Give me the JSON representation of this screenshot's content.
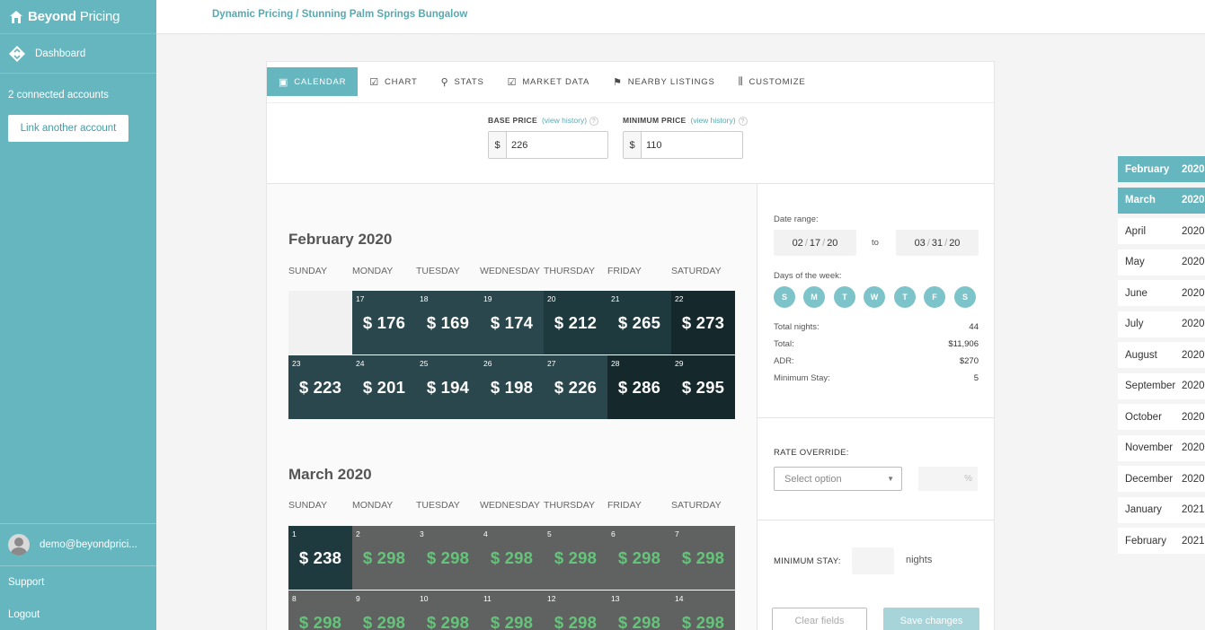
{
  "sidebar": {
    "brand_bold": "Beyond",
    "brand_light": "Pricing",
    "dashboard": "Dashboard",
    "accounts": "2 connected accounts",
    "link_account": "Link another account",
    "user_email": "demo@beyondprici...",
    "support": "Support",
    "logout": "Logout"
  },
  "header": {
    "breadcrumb": "Dynamic Pricing / Stunning Palm Springs Bungalow"
  },
  "tabs": [
    "CALENDAR",
    "CHART",
    "STATS",
    "MARKET DATA",
    "NEARBY LISTINGS",
    "CUSTOMIZE"
  ],
  "prices": {
    "base_label": "BASE PRICE",
    "base_value": "226",
    "min_label": "MINIMUM PRICE",
    "min_value": "110",
    "view_history": "(view history)",
    "currency": "$",
    "help": "?"
  },
  "weekdays": [
    "SUNDAY",
    "MONDAY",
    "TUESDAY",
    "WEDNESDAY",
    "THURSDAY",
    "FRIDAY",
    "SATURDAY"
  ],
  "months": [
    {
      "title": "February 2020",
      "weeks": [
        [
          null,
          {
            "day": "17",
            "price": "$ 176"
          },
          {
            "day": "18",
            "price": "$ 169"
          },
          {
            "day": "19",
            "price": "$ 174"
          },
          {
            "day": "20",
            "price": "$ 212"
          },
          {
            "day": "21",
            "price": "$ 265"
          },
          {
            "day": "22",
            "price": "$ 273"
          }
        ],
        [
          {
            "day": "23",
            "price": "$ 223"
          },
          {
            "day": "24",
            "price": "$ 201"
          },
          {
            "day": "25",
            "price": "$ 194"
          },
          {
            "day": "26",
            "price": "$ 198"
          },
          {
            "day": "27",
            "price": "$ 226"
          },
          {
            "day": "28",
            "price": "$ 286"
          },
          {
            "day": "29",
            "price": "$ 295"
          }
        ]
      ]
    },
    {
      "title": "March 2020",
      "weeks": [
        [
          {
            "day": "1",
            "price": "$ 238"
          },
          {
            "day": "2",
            "price": "$ 298"
          },
          {
            "day": "3",
            "price": "$ 298"
          },
          {
            "day": "4",
            "price": "$ 298"
          },
          {
            "day": "5",
            "price": "$ 298"
          },
          {
            "day": "6",
            "price": "$ 298"
          },
          {
            "day": "7",
            "price": "$ 298"
          }
        ],
        [
          {
            "day": "8",
            "price": "$ 298"
          },
          {
            "day": "9",
            "price": "$ 298"
          },
          {
            "day": "10",
            "price": "$ 298"
          },
          {
            "day": "11",
            "price": "$ 298"
          },
          {
            "day": "12",
            "price": "$ 298"
          },
          {
            "day": "13",
            "price": "$ 298"
          },
          {
            "day": "14",
            "price": "$ 298"
          }
        ]
      ]
    }
  ],
  "settings": {
    "date_range_label": "Date range:",
    "from": {
      "mm": "02",
      "dd": "17",
      "yy": "20"
    },
    "to_word": "to",
    "to": {
      "mm": "03",
      "dd": "31",
      "yy": "20"
    },
    "days_label": "Days of the week:",
    "days": [
      "S",
      "M",
      "T",
      "W",
      "T",
      "F",
      "S"
    ],
    "stats": [
      {
        "label": "Total nights:",
        "value": "44"
      },
      {
        "label": "Total:",
        "value": "$11,906"
      },
      {
        "label": "ADR:",
        "value": "$270"
      },
      {
        "label": "Minimum Stay:",
        "value": "5"
      }
    ],
    "rate_override_label": "RATE OVERRIDE:",
    "select_placeholder": "Select option",
    "percent": "%",
    "min_stay_label": "MINIMUM STAY:",
    "nights": "nights",
    "clear": "Clear fields",
    "save": "Save changes"
  },
  "month_list": [
    {
      "month": "February",
      "year": "2020"
    },
    {
      "month": "March",
      "year": "2020"
    },
    {
      "month": "April",
      "year": "2020"
    },
    {
      "month": "May",
      "year": "2020"
    },
    {
      "month": "June",
      "year": "2020"
    },
    {
      "month": "July",
      "year": "2020"
    },
    {
      "month": "August",
      "year": "2020"
    },
    {
      "month": "September",
      "year": "2020"
    },
    {
      "month": "October",
      "year": "2020"
    },
    {
      "month": "November",
      "year": "2020"
    },
    {
      "month": "December",
      "year": "2020"
    },
    {
      "month": "January",
      "year": "2021"
    },
    {
      "month": "February",
      "year": "2021"
    }
  ],
  "colors": {
    "accent": "#65b6bf",
    "price_green": "#66c37a",
    "cell_dark": "#1e3a3e",
    "cell_gray": "#606262"
  }
}
